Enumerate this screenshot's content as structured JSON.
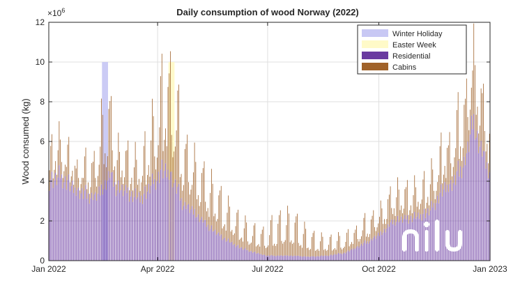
{
  "chart_data": {
    "type": "bar",
    "stacked": true,
    "title": "Daily consumption of wood Norway (2022)",
    "xlabel": "",
    "ylabel": "Wood consumed (kg)",
    "y_exponent_label": "×10",
    "y_exponent_power": "6",
    "y_scale": 1000000,
    "ylim": [
      0,
      12000000
    ],
    "y_ticks": [
      0,
      2000000,
      4000000,
      6000000,
      8000000,
      10000000,
      12000000
    ],
    "y_tick_labels": [
      "0",
      "2",
      "4",
      "6",
      "8",
      "10",
      "12"
    ],
    "x_range_days": [
      0,
      365
    ],
    "x_ticks": [
      {
        "day": 0,
        "label": "Jan 2022"
      },
      {
        "day": 90,
        "label": "Apr 2022"
      },
      {
        "day": 181,
        "label": "Jul 2022"
      },
      {
        "day": 273,
        "label": "Oct 2022"
      },
      {
        "day": 365,
        "label": "Jan 2023"
      }
    ],
    "grid": true,
    "legend_position": "top-right",
    "legend": [
      {
        "name": "Winter Holiday",
        "color": "#c8c8f4"
      },
      {
        "name": "Easter Week",
        "color": "#fffac8"
      },
      {
        "name": "Residential",
        "color": "#6a3aa0"
      },
      {
        "name": "Cabins",
        "color": "#a0622a"
      }
    ],
    "highlight_periods": [
      {
        "name": "Winter Holiday",
        "start_day": 44,
        "end_day": 49,
        "height": 10000000,
        "color": "#c8c8f4"
      },
      {
        "name": "Easter Week",
        "start_day": 99,
        "end_day": 104,
        "height": 10000000,
        "color": "#fffac8"
      }
    ],
    "series": [
      {
        "name": "Residential",
        "color": "#6a3aa0",
        "points": [
          [
            0,
            4000000
          ],
          [
            10,
            4200000
          ],
          [
            20,
            3600000
          ],
          [
            30,
            3300000
          ],
          [
            38,
            3200000
          ],
          [
            44,
            3600000
          ],
          [
            50,
            4300000
          ],
          [
            55,
            3700000
          ],
          [
            65,
            3400000
          ],
          [
            75,
            3100000
          ],
          [
            85,
            3800000
          ],
          [
            93,
            4500000
          ],
          [
            100,
            4400000
          ],
          [
            110,
            2900000
          ],
          [
            120,
            2400000
          ],
          [
            130,
            1800000
          ],
          [
            140,
            1300000
          ],
          [
            150,
            900000
          ],
          [
            160,
            600000
          ],
          [
            170,
            400000
          ],
          [
            180,
            250000
          ],
          [
            190,
            250000
          ],
          [
            200,
            250000
          ],
          [
            215,
            200000
          ],
          [
            230,
            250000
          ],
          [
            245,
            400000
          ],
          [
            255,
            700000
          ],
          [
            265,
            1000000
          ],
          [
            275,
            1400000
          ],
          [
            285,
            2000000
          ],
          [
            295,
            2100000
          ],
          [
            305,
            2200000
          ],
          [
            315,
            2500000
          ],
          [
            325,
            3500000
          ],
          [
            335,
            4000000
          ],
          [
            345,
            5200000
          ],
          [
            350,
            7000000
          ],
          [
            355,
            6000000
          ],
          [
            360,
            5000000
          ],
          [
            365,
            4500000
          ]
        ]
      },
      {
        "name": "Cabins",
        "color": "#a0622a",
        "points": [
          [
            0,
            900000
          ],
          [
            10,
            1100000
          ],
          [
            20,
            800000
          ],
          [
            30,
            900000
          ],
          [
            38,
            1200000
          ],
          [
            44,
            2400000
          ],
          [
            50,
            2200000
          ],
          [
            55,
            1200000
          ],
          [
            65,
            1200000
          ],
          [
            75,
            1100000
          ],
          [
            85,
            1800000
          ],
          [
            93,
            2600000
          ],
          [
            100,
            3300000
          ],
          [
            110,
            2000000
          ],
          [
            120,
            1700000
          ],
          [
            130,
            1500000
          ],
          [
            140,
            1300000
          ],
          [
            150,
            1000000
          ],
          [
            160,
            800000
          ],
          [
            170,
            700000
          ],
          [
            180,
            800000
          ],
          [
            190,
            1200000
          ],
          [
            200,
            1300000
          ],
          [
            215,
            700000
          ],
          [
            230,
            500000
          ],
          [
            245,
            500000
          ],
          [
            255,
            600000
          ],
          [
            265,
            700000
          ],
          [
            275,
            800000
          ],
          [
            285,
            1000000
          ],
          [
            295,
            900000
          ],
          [
            305,
            900000
          ],
          [
            315,
            1000000
          ],
          [
            325,
            1300000
          ],
          [
            335,
            1500000
          ],
          [
            345,
            2000000
          ],
          [
            350,
            2400000
          ],
          [
            355,
            2000000
          ],
          [
            360,
            1700000
          ],
          [
            365,
            1500000
          ]
        ]
      }
    ],
    "watermark": "nilu"
  }
}
